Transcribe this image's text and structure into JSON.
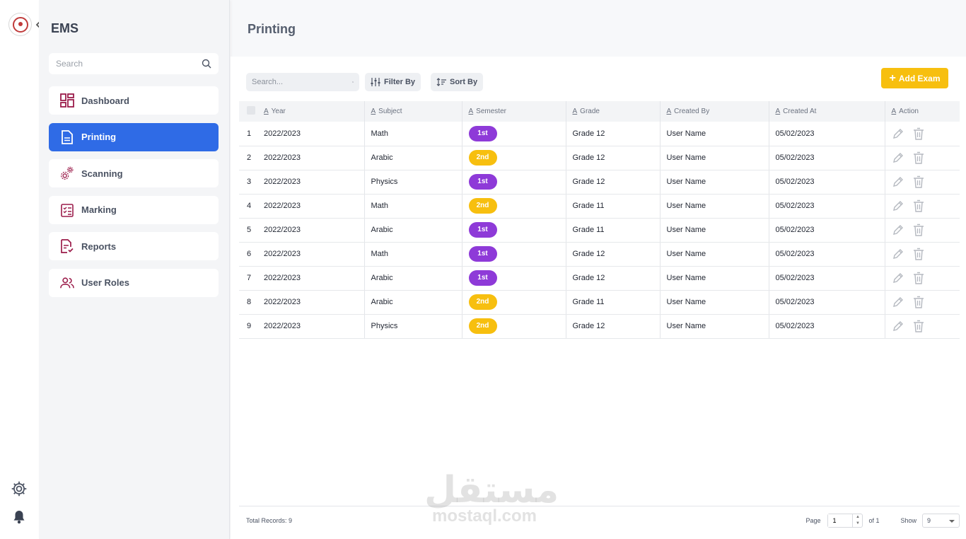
{
  "app": {
    "brand": "EMS",
    "page_title": "Printing"
  },
  "sidebar": {
    "search_placeholder": "Search",
    "items": [
      {
        "label": "Dashboard",
        "icon": "dashboard-icon",
        "active": false
      },
      {
        "label": "Printing",
        "icon": "document-icon",
        "active": true
      },
      {
        "label": "Scanning",
        "icon": "gears-icon",
        "active": false
      },
      {
        "label": "Marking",
        "icon": "checklist-icon",
        "active": false
      },
      {
        "label": "Reports",
        "icon": "report-check-icon",
        "active": false
      },
      {
        "label": "User Roles",
        "icon": "users-icon",
        "active": false
      }
    ]
  },
  "toolbar": {
    "search_placeholder": "Search...",
    "filter_label": "Filter By",
    "sort_label": "Sort By",
    "add_label": "Add Exam"
  },
  "table": {
    "columns": [
      "Year",
      "Subject",
      "Semester",
      "Grade",
      "Created By",
      "Created At",
      "Action"
    ],
    "rows": [
      {
        "n": "1",
        "year": "2022/2023",
        "subject": "Math",
        "semester": "1st",
        "grade": "Grade 12",
        "created_by": "User Name",
        "created_at": "05/02/2023"
      },
      {
        "n": "2",
        "year": "2022/2023",
        "subject": "Arabic",
        "semester": "2nd",
        "grade": "Grade 12",
        "created_by": "User Name",
        "created_at": "05/02/2023"
      },
      {
        "n": "3",
        "year": "2022/2023",
        "subject": "Physics",
        "semester": "1st",
        "grade": "Grade 12",
        "created_by": "User Name",
        "created_at": "05/02/2023"
      },
      {
        "n": "4",
        "year": "2022/2023",
        "subject": "Math",
        "semester": "2nd",
        "grade": "Grade 11",
        "created_by": "User Name",
        "created_at": "05/02/2023"
      },
      {
        "n": "5",
        "year": "2022/2023",
        "subject": "Arabic",
        "semester": "1st",
        "grade": "Grade 11",
        "created_by": "User Name",
        "created_at": "05/02/2023"
      },
      {
        "n": "6",
        "year": "2022/2023",
        "subject": "Math",
        "semester": "1st",
        "grade": "Grade 12",
        "created_by": "User Name",
        "created_at": "05/02/2023"
      },
      {
        "n": "7",
        "year": "2022/2023",
        "subject": "Arabic",
        "semester": "1st",
        "grade": "Grade 12",
        "created_by": "User Name",
        "created_at": "05/02/2023"
      },
      {
        "n": "8",
        "year": "2022/2023",
        "subject": "Arabic",
        "semester": "2nd",
        "grade": "Grade 11",
        "created_by": "User Name",
        "created_at": "05/02/2023"
      },
      {
        "n": "9",
        "year": "2022/2023",
        "subject": "Physics",
        "semester": "2nd",
        "grade": "Grade 12",
        "created_by": "User Name",
        "created_at": "05/02/2023"
      }
    ]
  },
  "footer": {
    "total_label": "Total Records: 9",
    "page_label": "Page",
    "page_value": "1",
    "of_label": "of 1",
    "show_label": "Show",
    "show_value": "9"
  },
  "watermark": {
    "arabic": "مستقل",
    "latin": "mostaql.com"
  },
  "colors": {
    "primary": "#2f6be6",
    "accent": "#f7bf0f",
    "badge_first": "#8e3ad8",
    "badge_second": "#f7bf0f",
    "icon": "#9b1c4a"
  }
}
